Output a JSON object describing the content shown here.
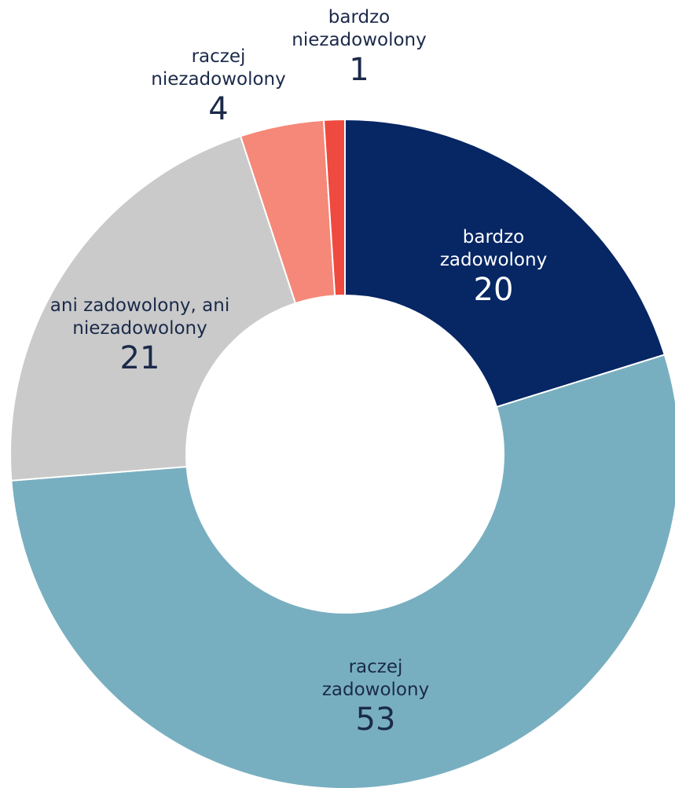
{
  "chart_data": {
    "type": "donut",
    "categories": [
      "bardzo zadowolony",
      "raczej zadowolony",
      "ani zadowolony, ani niezadowolony",
      "raczej niezadowolony",
      "bardzo niezadowolony"
    ],
    "values": [
      20,
      53,
      21,
      4,
      1
    ],
    "colors": [
      "#062664",
      "#78afc0",
      "#cacaca",
      "#f58878",
      "#ef4a3f"
    ]
  }
}
